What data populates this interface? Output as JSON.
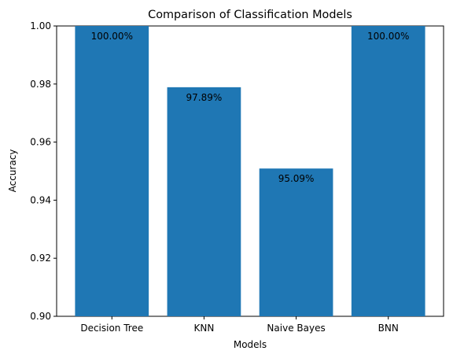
{
  "chart_data": {
    "type": "bar",
    "title": "Comparison of Classification Models",
    "xlabel": "Models",
    "ylabel": "Accuracy",
    "categories": [
      "Decision Tree",
      "KNN",
      "Naive Bayes",
      "BNN"
    ],
    "values": [
      1.0,
      0.9789,
      0.9509,
      1.0
    ],
    "data_labels": [
      "100.00%",
      "97.89%",
      "95.09%",
      "100.00%"
    ],
    "ylim": [
      0.9,
      1.0
    ],
    "yticks": [
      0.9,
      0.92,
      0.94,
      0.96,
      0.98,
      1.0
    ],
    "ytick_labels": [
      "0.90",
      "0.92",
      "0.94",
      "0.96",
      "0.98",
      "1.00"
    ],
    "grid": false,
    "bar_color": "#1f77b4"
  }
}
